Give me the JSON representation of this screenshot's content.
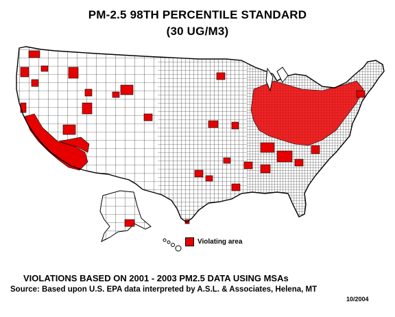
{
  "title": {
    "line1": "PM-2.5 98TH PERCENTILE STANDARD",
    "line2": "(30 UG/M3)"
  },
  "legend": {
    "label": "Violating area",
    "color": "#e60000"
  },
  "footer": {
    "line1": "VIOLATIONS BASED ON 2001 - 2003 PM2.5 DATA USING MSAs",
    "line2": "Source:  Based upon U.S. EPA data interpreted by A.S.L. & Associates, Helena, MT",
    "date": "10/2004"
  },
  "colors": {
    "violation": "#e60000",
    "county_fill": "#ffffff",
    "outline": "#000000"
  }
}
